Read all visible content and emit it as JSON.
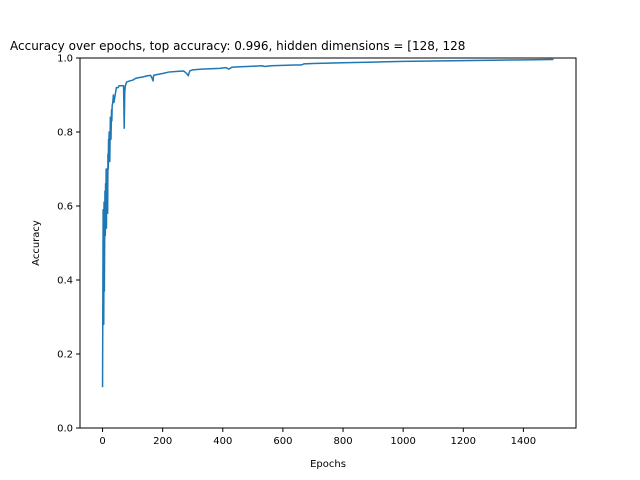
{
  "colors": {
    "series": "#1f77b4",
    "axes": "#000000",
    "background": "#ffffff"
  },
  "chart_data": {
    "type": "line",
    "title": "Accuracy over epochs, top accuracy: 0.996, hidden dimensions = [128, 128",
    "xlabel": "Epochs",
    "ylabel": "Accuracy",
    "xlim": [
      -75,
      1575
    ],
    "ylim": [
      0.0,
      1.0
    ],
    "grid": false,
    "xticks": [
      0,
      200,
      400,
      600,
      800,
      1000,
      1200,
      1400
    ],
    "xtick_labels": [
      "0",
      "200",
      "400",
      "600",
      "800",
      "1000",
      "1200",
      "1400"
    ],
    "yticks": [
      0.0,
      0.2,
      0.4,
      0.6,
      0.8,
      1.0
    ],
    "ytick_labels": [
      "0.0",
      "0.2",
      "0.4",
      "0.6",
      "0.8",
      "1.0"
    ],
    "series": [
      {
        "x": [
          0,
          2,
          4,
          5,
          6,
          8,
          9,
          10,
          11,
          12,
          13,
          14,
          15,
          16,
          17,
          18,
          19,
          20,
          21,
          22,
          24,
          26,
          28,
          30,
          31,
          32,
          34,
          36,
          38,
          40,
          42,
          44,
          46,
          48,
          50,
          52,
          55,
          60,
          65,
          70,
          72,
          74,
          76,
          78,
          80,
          90,
          100,
          110,
          120,
          130,
          140,
          150,
          160,
          165,
          168,
          170,
          180,
          200,
          220,
          250,
          270,
          280,
          285,
          290,
          300,
          330,
          360,
          390,
          410,
          420,
          430,
          450,
          480,
          510,
          530,
          540,
          560,
          600,
          640,
          660,
          670,
          700,
          750,
          800,
          900,
          1000,
          1100,
          1200,
          1300,
          1400,
          1500
        ],
        "y": [
          0.11,
          0.59,
          0.28,
          0.61,
          0.37,
          0.64,
          0.52,
          0.66,
          0.55,
          0.7,
          0.54,
          0.66,
          0.62,
          0.7,
          0.58,
          0.74,
          0.7,
          0.78,
          0.76,
          0.8,
          0.72,
          0.84,
          0.78,
          0.86,
          0.83,
          0.87,
          0.88,
          0.9,
          0.88,
          0.89,
          0.9,
          0.91,
          0.92,
          0.92,
          0.92,
          0.92,
          0.925,
          0.925,
          0.925,
          0.925,
          0.81,
          0.91,
          0.925,
          0.93,
          0.935,
          0.938,
          0.94,
          0.945,
          0.947,
          0.948,
          0.95,
          0.952,
          0.953,
          0.945,
          0.938,
          0.953,
          0.955,
          0.958,
          0.962,
          0.964,
          0.965,
          0.958,
          0.952,
          0.965,
          0.968,
          0.97,
          0.971,
          0.972,
          0.974,
          0.97,
          0.975,
          0.976,
          0.977,
          0.978,
          0.979,
          0.977,
          0.979,
          0.98,
          0.981,
          0.981,
          0.984,
          0.985,
          0.986,
          0.987,
          0.989,
          0.991,
          0.992,
          0.993,
          0.994,
          0.995,
          0.996
        ]
      }
    ]
  }
}
